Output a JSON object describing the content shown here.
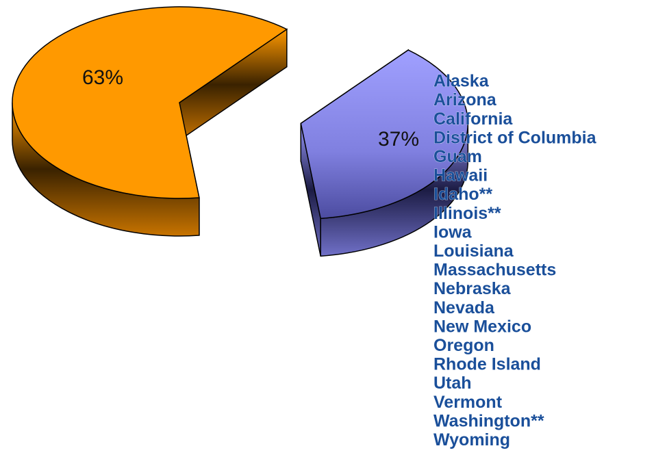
{
  "chart_data": {
    "type": "pie",
    "values": [
      63,
      37
    ],
    "value_labels": [
      "63%",
      "37%"
    ],
    "colors": [
      "#ff9900",
      "#9999ff"
    ],
    "annotations": [
      "Alaska",
      "Arizona",
      "California",
      "District of Columbia",
      "Guam",
      "Hawaii",
      "Idaho**",
      "Illinois**",
      "Iowa",
      "Louisiana",
      "Massachusetts",
      "Nebraska",
      "Nevada",
      "New Mexico",
      "Oregon",
      "Rhode Island",
      "Utah",
      "Vermont",
      "Washington**",
      "Wyoming"
    ]
  }
}
